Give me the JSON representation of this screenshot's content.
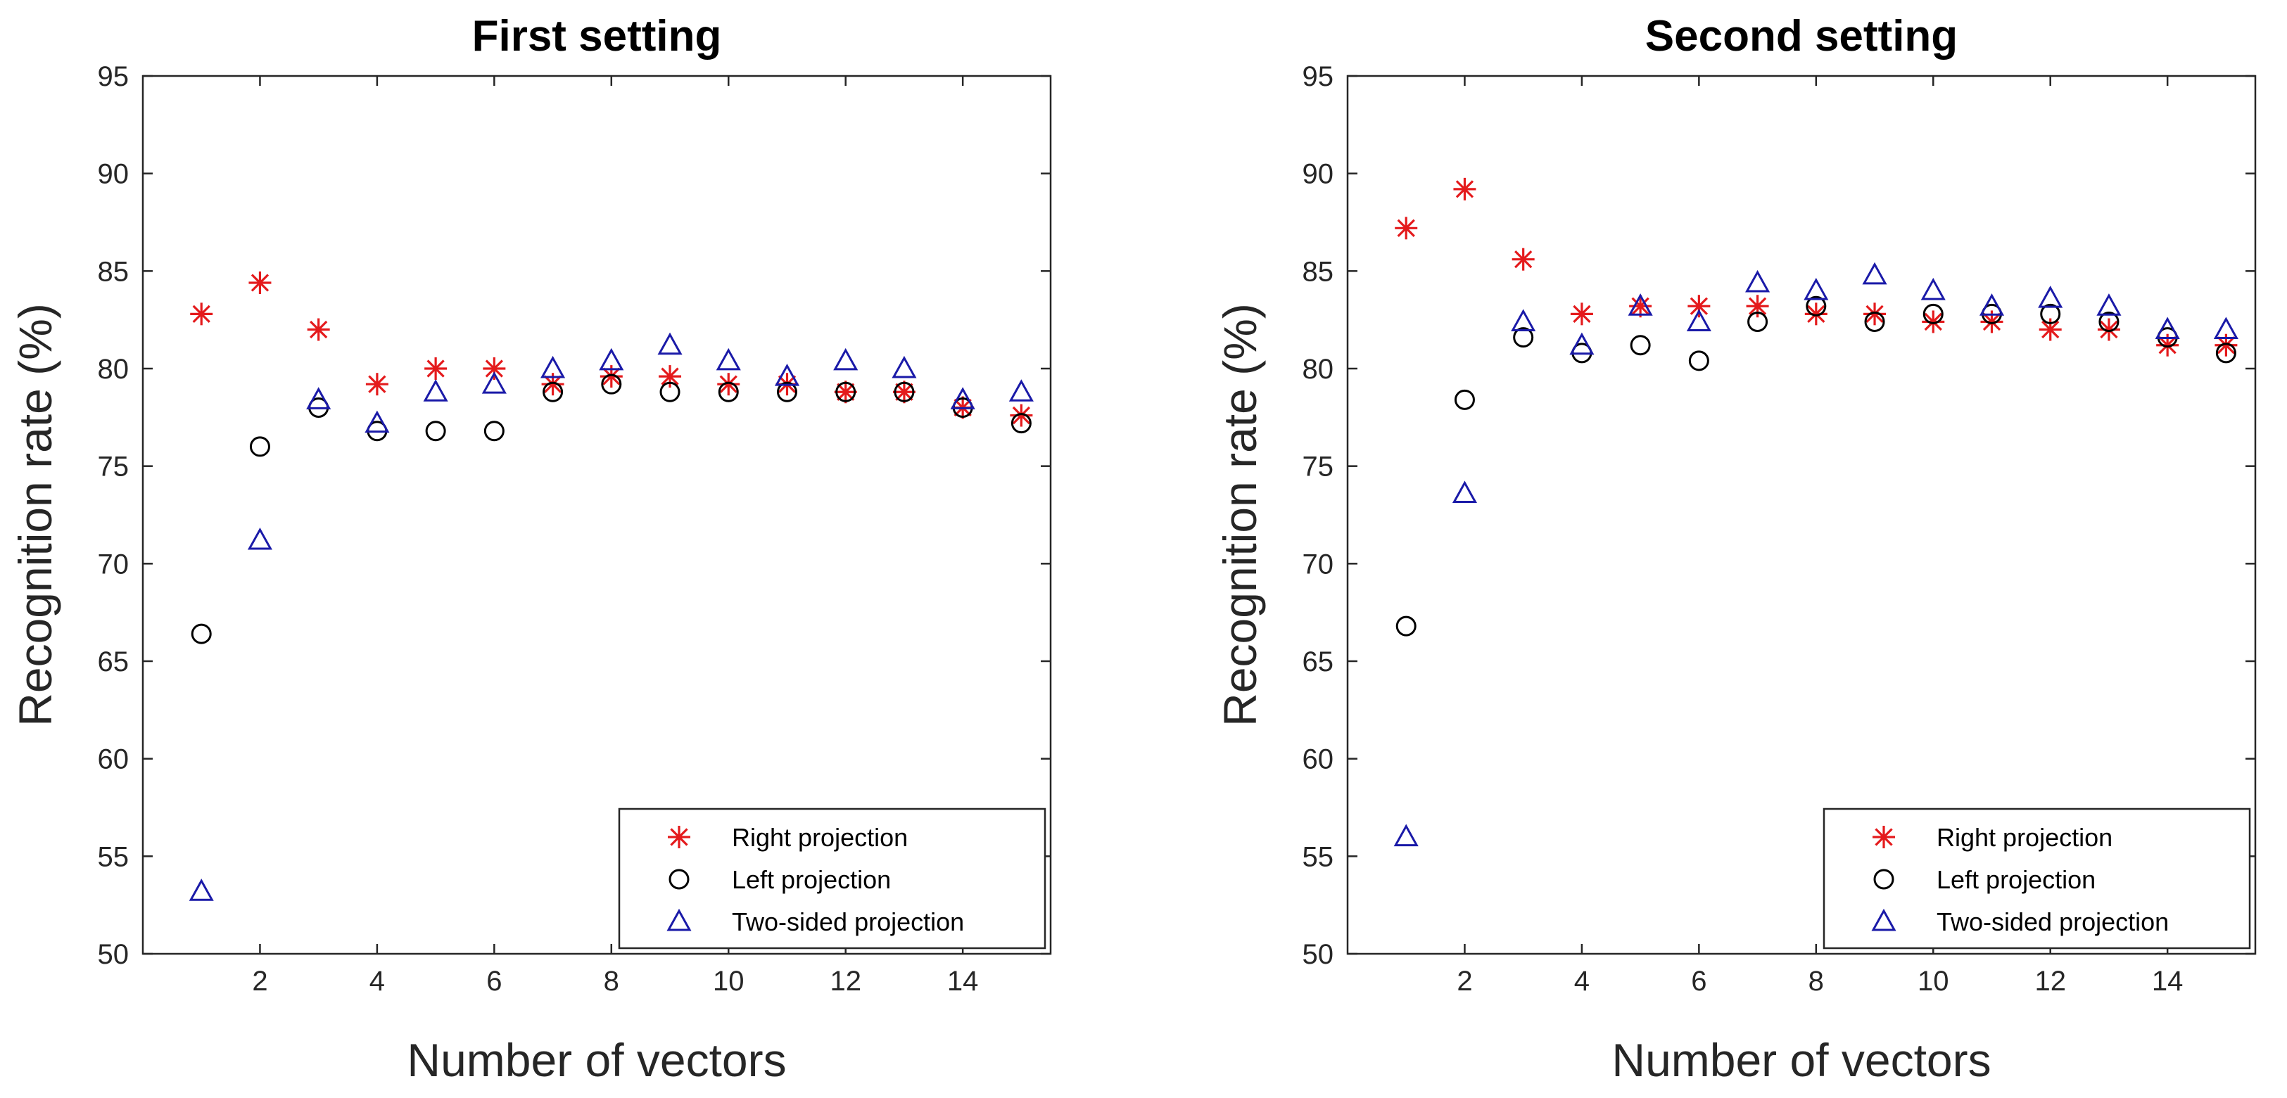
{
  "chart_data": [
    {
      "type": "scatter",
      "title": "First setting",
      "xlabel": "Number of vectors",
      "ylabel": "Recognition rate (%)",
      "xlim": [
        0,
        15.5
      ],
      "ylim": [
        50,
        95
      ],
      "xticks": [
        2,
        4,
        6,
        8,
        10,
        12,
        14
      ],
      "yticks": [
        50,
        55,
        60,
        65,
        70,
        75,
        80,
        85,
        90,
        95
      ],
      "xtick_labels": [
        "2",
        "4",
        "6",
        "8",
        "10",
        "12",
        "14"
      ],
      "ytick_labels": [
        "50",
        "55",
        "60",
        "65",
        "70",
        "75",
        "80",
        "85",
        "90",
        "95"
      ],
      "legend_position": "bottom-right",
      "x": [
        1,
        2,
        3,
        4,
        5,
        6,
        7,
        8,
        9,
        10,
        11,
        12,
        13,
        14,
        15
      ],
      "series": [
        {
          "name": "Right projection",
          "marker": "asterisk",
          "color": "#e41a1c",
          "values": [
            82.8,
            84.4,
            82.0,
            79.2,
            80.0,
            80.0,
            79.2,
            79.6,
            79.6,
            79.2,
            79.2,
            78.8,
            78.8,
            78.0,
            77.6
          ]
        },
        {
          "name": "Left projection",
          "marker": "circle",
          "color": "#000000",
          "values": [
            66.4,
            76.0,
            78.0,
            76.8,
            76.8,
            76.8,
            78.8,
            79.2,
            78.8,
            78.8,
            78.8,
            78.8,
            78.8,
            78.0,
            77.2
          ]
        },
        {
          "name": "Two-sided projection",
          "marker": "triangle",
          "color": "#1a1aa8",
          "values": [
            53.2,
            71.2,
            78.4,
            77.2,
            78.8,
            79.2,
            80.0,
            80.4,
            81.2,
            80.4,
            79.6,
            80.4,
            80.0,
            78.4,
            78.8
          ]
        }
      ]
    },
    {
      "type": "scatter",
      "title": "Second setting",
      "xlabel": "Number of vectors",
      "ylabel": "Recognition rate (%)",
      "xlim": [
        0,
        15.5
      ],
      "ylim": [
        50,
        95
      ],
      "xticks": [
        2,
        4,
        6,
        8,
        10,
        12,
        14
      ],
      "yticks": [
        50,
        55,
        60,
        65,
        70,
        75,
        80,
        85,
        90,
        95
      ],
      "xtick_labels": [
        "2",
        "4",
        "6",
        "8",
        "10",
        "12",
        "14"
      ],
      "ytick_labels": [
        "50",
        "55",
        "60",
        "65",
        "70",
        "75",
        "80",
        "85",
        "90",
        "95"
      ],
      "legend_position": "bottom-right",
      "x": [
        1,
        2,
        3,
        4,
        5,
        6,
        7,
        8,
        9,
        10,
        11,
        12,
        13,
        14,
        15
      ],
      "series": [
        {
          "name": "Right projection",
          "marker": "asterisk",
          "color": "#e41a1c",
          "values": [
            87.2,
            89.2,
            85.6,
            82.8,
            83.2,
            83.2,
            83.2,
            82.8,
            82.8,
            82.4,
            82.4,
            82.0,
            82.0,
            81.2,
            81.2
          ]
        },
        {
          "name": "Left projection",
          "marker": "circle",
          "color": "#000000",
          "values": [
            66.8,
            78.4,
            81.6,
            80.8,
            81.2,
            80.4,
            82.4,
            83.2,
            82.4,
            82.8,
            82.8,
            82.8,
            82.4,
            81.6,
            80.8
          ]
        },
        {
          "name": "Two-sided projection",
          "marker": "triangle",
          "color": "#1a1aa8",
          "values": [
            56.0,
            73.6,
            82.4,
            81.2,
            83.2,
            82.4,
            84.4,
            84.0,
            84.8,
            84.0,
            83.2,
            83.6,
            83.2,
            82.0,
            82.0
          ]
        }
      ]
    }
  ]
}
